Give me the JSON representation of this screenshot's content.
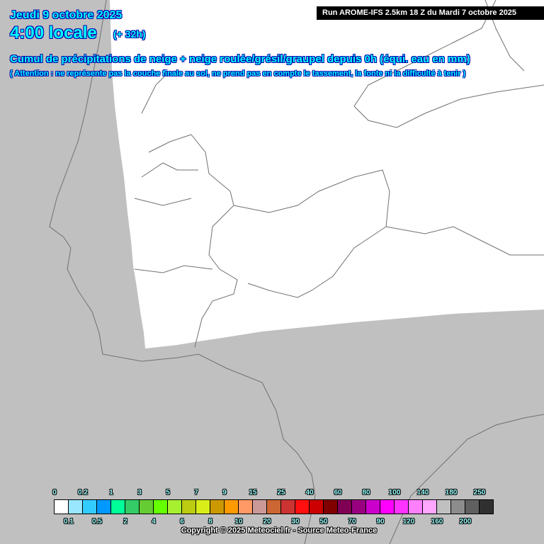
{
  "header": {
    "date": "Jeudi 9 octobre 2025",
    "time": "4:00 locale",
    "lead": "(+ 32h)",
    "title": "Cumul de précipitations de neige + neige roulée/grésil/graupel depuis 0h (équi. eau en mm)",
    "note": "( Attention : ne représente pas la couche finale au sol, ne prend pas en compte le tassement, la fonte ni la difficulté à tenir )",
    "run": "Run AROME-IFS 2.5km 18 Z du Mardi 7 octobre 2025"
  },
  "colors": {
    "land": "#ffffff",
    "sea_outside_domain": "#c0c0c0",
    "borders": "#707070"
  },
  "legend": {
    "labels": [
      "0",
      "0.1",
      "0.2",
      "0.5",
      "1",
      "2",
      "3",
      "4",
      "5",
      "6",
      "7",
      "8",
      "9",
      "10",
      "15",
      "20",
      "25",
      "30",
      "40",
      "50",
      "60",
      "70",
      "80",
      "90",
      "100",
      "120",
      "140",
      "160",
      "180",
      "200",
      "250"
    ],
    "colors": [
      "#ffffff",
      "#99e6ff",
      "#33ccff",
      "#0099ff",
      "#00ff99",
      "#33cc66",
      "#66cc33",
      "#66ff00",
      "#a6f030",
      "#bbcc11",
      "#d9ee19",
      "#cc9900",
      "#ff9900",
      "#ff9966",
      "#cc9999",
      "#cc6633",
      "#cc3333",
      "#ff0f0f",
      "#cc0000",
      "#800000",
      "#800055",
      "#990080",
      "#cc00cc",
      "#ff00ff",
      "#ff33ff",
      "#ff80ff",
      "#ffa6ff",
      "#c0c0c0",
      "#8c8c8c",
      "#606060",
      "#303030"
    ]
  },
  "copyright": "Copyright © 2025 Meteociel.fr - Source Meteo-France"
}
